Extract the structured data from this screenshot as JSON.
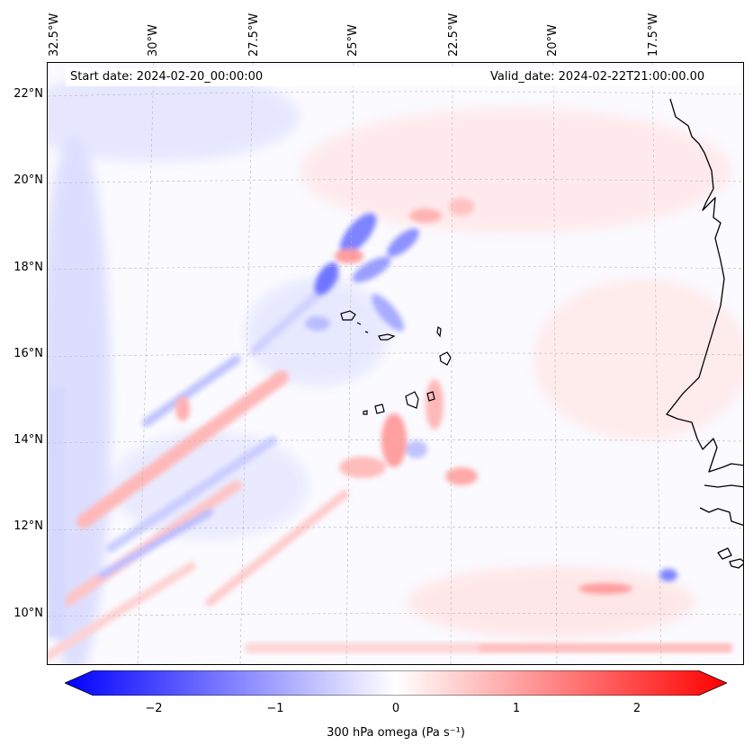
{
  "header": {
    "start_date": "Start date: 2024-02-20_00:00:00",
    "valid_date": "Valid_date: 2024-02-22T21:00:00.00"
  },
  "axes": {
    "lon_labels": [
      "32.5°W",
      "30°W",
      "27.5°W",
      "25°W",
      "22.5°W",
      "20°W",
      "17.5°W"
    ],
    "lat_labels": [
      "22°N",
      "20°N",
      "18°N",
      "16°N",
      "14°N",
      "12°N",
      "10°N"
    ],
    "gridlines": true
  },
  "colorbar": {
    "label": "300 hPa omega (Pa s⁻¹)",
    "ticks": [
      "−2",
      "−1",
      "0",
      "1",
      "2"
    ],
    "range": [
      -2.5,
      2.5
    ],
    "extend": "both",
    "colormap": "bwr",
    "colors": {
      "negative": "#0000ff",
      "zero": "#ffffff",
      "positive": "#ff0000"
    }
  },
  "map": {
    "projection": "lambert-conformal",
    "land_outline_color": "#000000",
    "features": [
      "west-african-coastline",
      "cape-verde-islands"
    ]
  }
}
